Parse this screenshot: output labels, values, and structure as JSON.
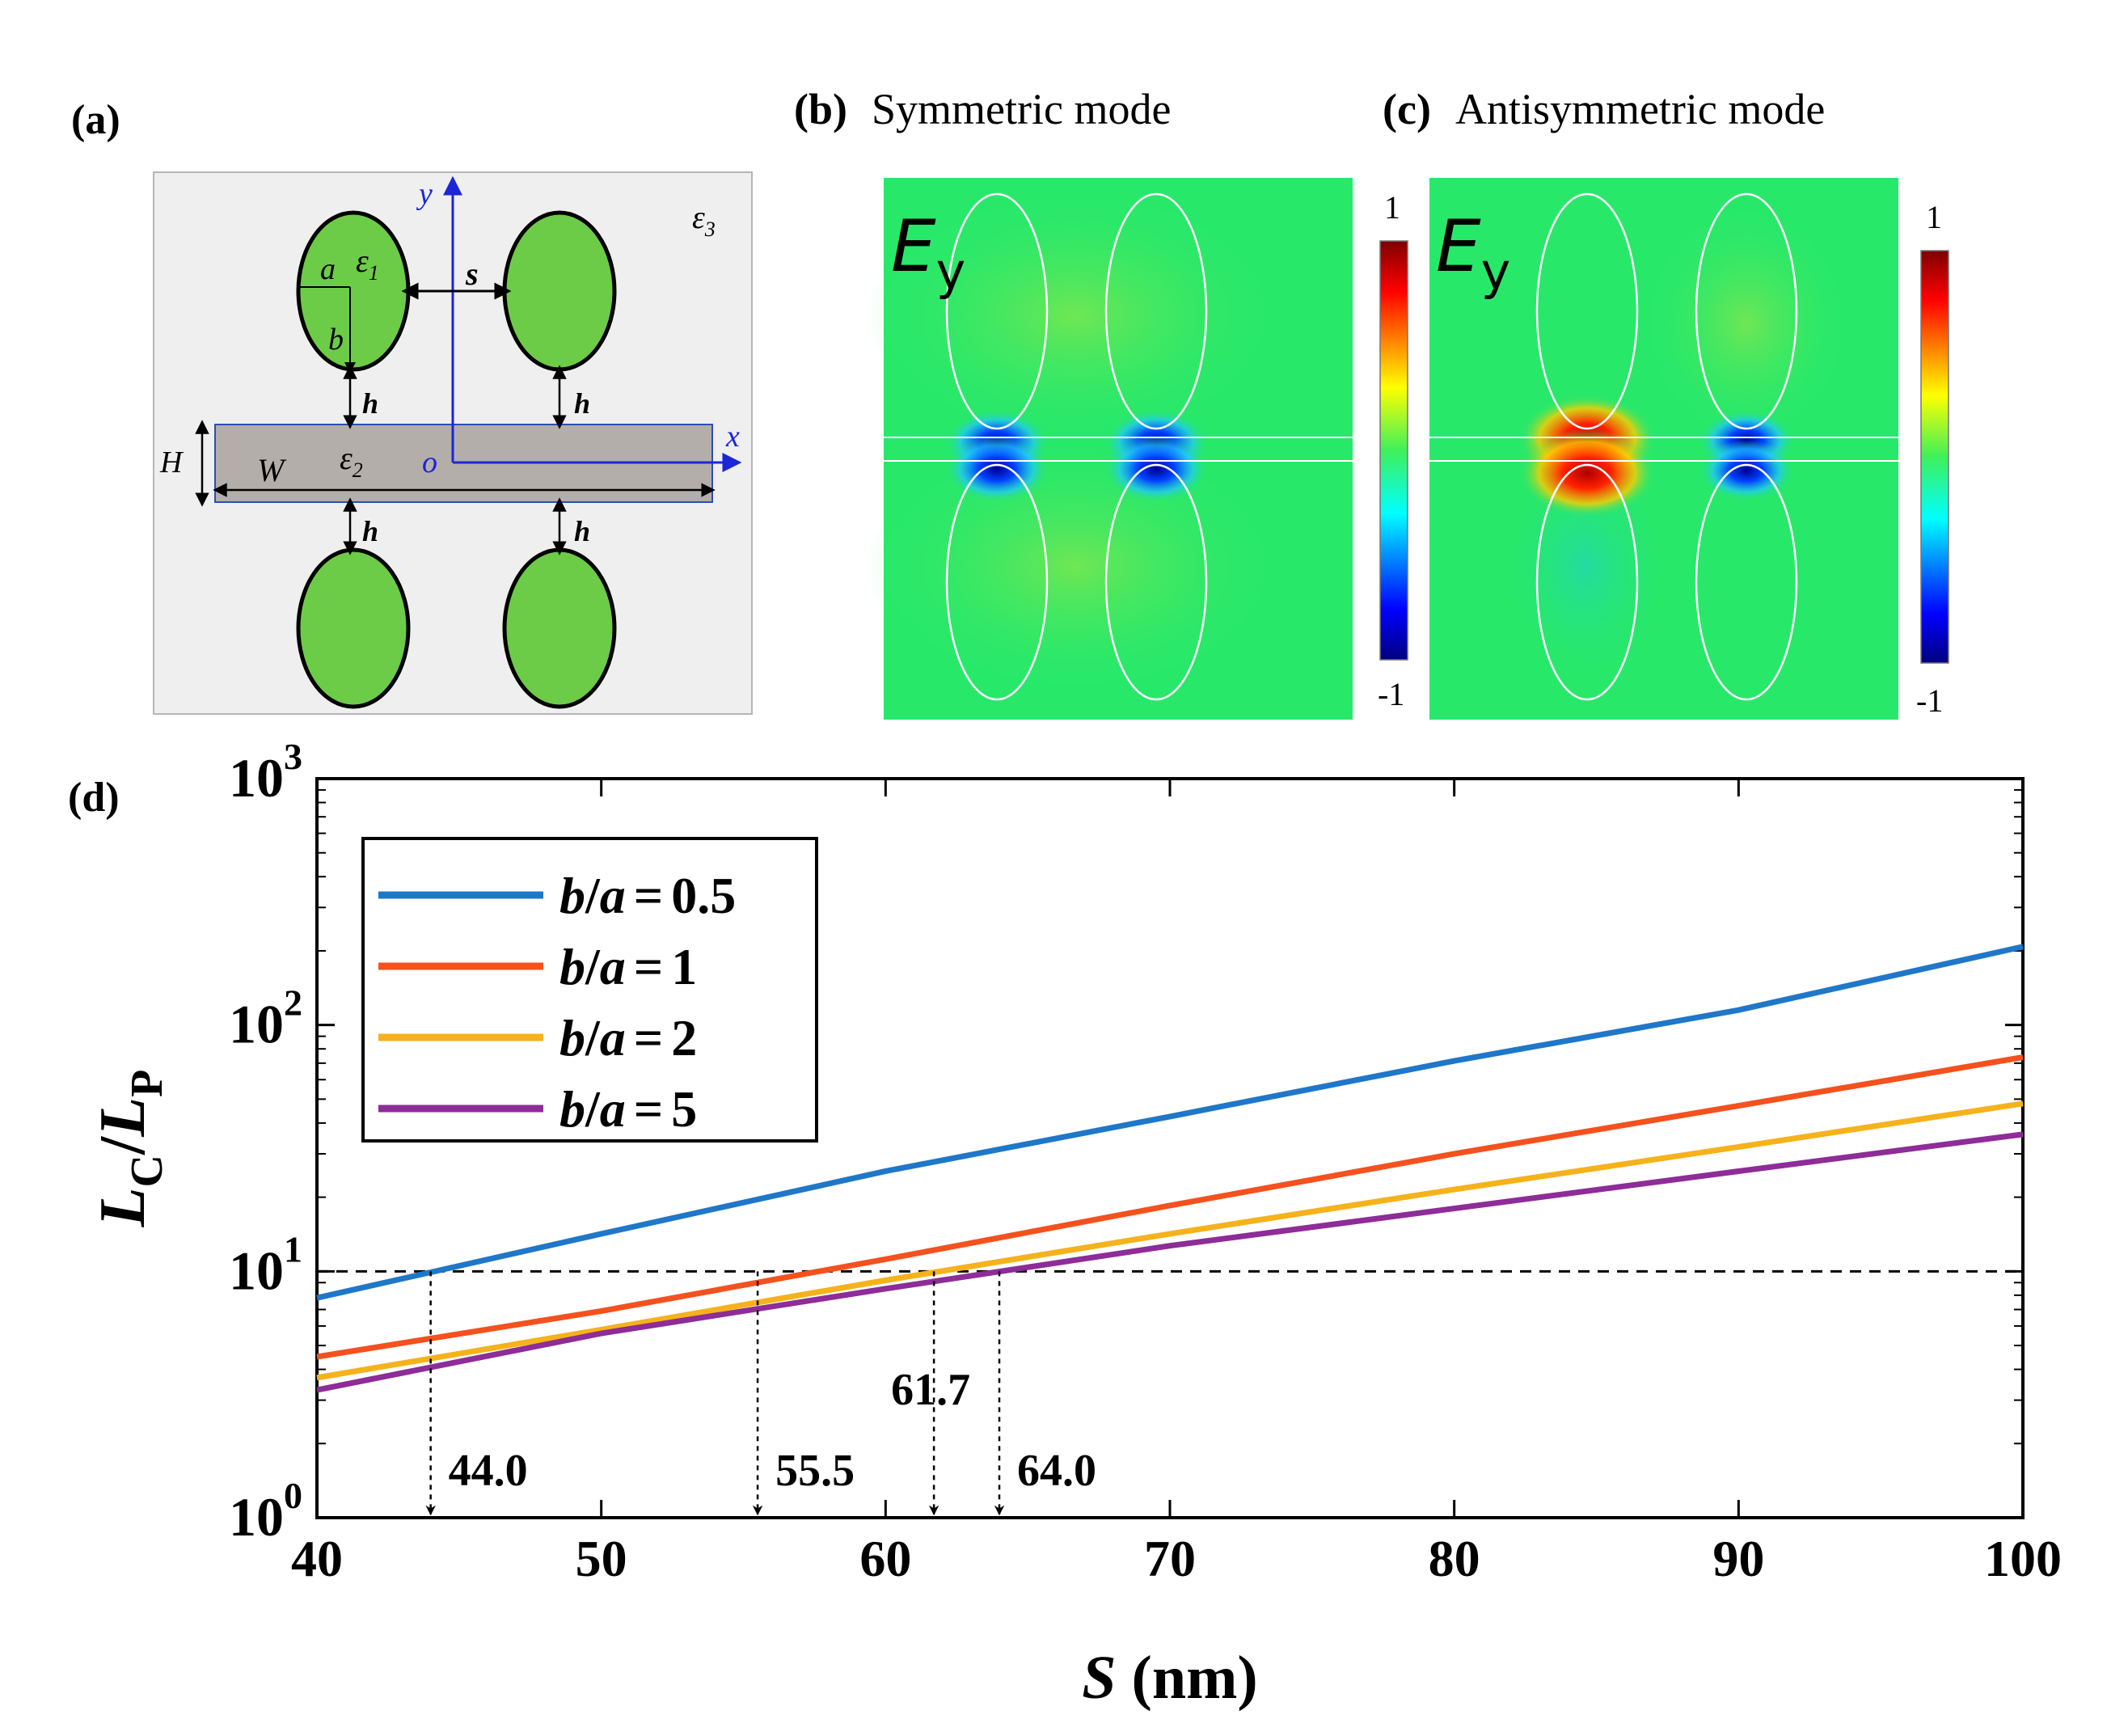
{
  "panels": {
    "a": {
      "label": "(a)",
      "eps1": "ε",
      "eps1_sub": "1",
      "eps2": "ε",
      "eps2_sub": "2",
      "eps3": "ε",
      "eps3_sub": "3",
      "a": "a",
      "b": "b",
      "s": "s",
      "h": "h",
      "H": "H",
      "W": "W",
      "o": "o",
      "x": "x",
      "y": "y"
    },
    "b": {
      "label": "(b)",
      "title": "Symmetric mode",
      "field": "E",
      "field_sub": "y",
      "cb_max": "1",
      "cb_min": "-1"
    },
    "c": {
      "label": "(c)",
      "title": "Antisymmetric mode",
      "field": "E",
      "field_sub": "y",
      "cb_max": "1",
      "cb_min": "-1"
    },
    "d": {
      "label": "(d)"
    }
  },
  "colors": {
    "particle": "#6dcc47",
    "strip": "#b3aeaa",
    "field_bg": "#28e86a",
    "axis_blue": "#1b26d8",
    "s05": "#1f77c9",
    "s1": "#f4511e",
    "s2": "#f6b21b",
    "s5": "#8e2c98"
  },
  "chart_data": {
    "type": "line",
    "xscale": "linear",
    "yscale": "log",
    "xlim": [
      40,
      100
    ],
    "ylim": [
      1,
      1000
    ],
    "xticks": [
      "40",
      "50",
      "60",
      "70",
      "80",
      "90",
      "100"
    ],
    "yticks": [
      {
        "base": "10",
        "exp": "0"
      },
      {
        "base": "10",
        "exp": "1"
      },
      {
        "base": "10",
        "exp": "2"
      },
      {
        "base": "10",
        "exp": "3"
      }
    ],
    "xlabel": {
      "var": "S",
      "unit": " (nm)"
    },
    "ylabel": {
      "main1": "L",
      "sub1": "C",
      "slash": "/",
      "main2": "L",
      "sub2": "P"
    },
    "legend_position": "top-left",
    "series": [
      {
        "name": "b/a = 0.5",
        "key": "s05",
        "legend": {
          "b": "b",
          "slash": "/",
          "a": "a",
          "eq": "=",
          "val": "0.5"
        },
        "x": [
          40,
          50,
          60,
          70,
          80,
          90,
          100
        ],
        "y": [
          7.8,
          14.2,
          25.5,
          42.5,
          71.5,
          115,
          208
        ]
      },
      {
        "name": "b/a = 1",
        "key": "s1",
        "legend": {
          "b": "b",
          "slash": "/",
          "a": "a",
          "eq": "=",
          "val": "1"
        },
        "x": [
          40,
          50,
          60,
          70,
          80,
          90,
          100
        ],
        "y": [
          4.5,
          6.9,
          11.2,
          18.5,
          30,
          47,
          74
        ]
      },
      {
        "name": "b/a = 2",
        "key": "s2",
        "legend": {
          "b": "b",
          "slash": "/",
          "a": "a",
          "eq": "=",
          "val": "2"
        },
        "x": [
          40,
          50,
          60,
          70,
          80,
          90,
          100
        ],
        "y": [
          3.7,
          5.8,
          9.2,
          14.2,
          21.5,
          32,
          48
        ]
      },
      {
        "name": "b/a = 5",
        "key": "s5",
        "legend": {
          "b": "b",
          "slash": "/",
          "a": "a",
          "eq": "=",
          "val": "5"
        },
        "x": [
          40,
          50,
          60,
          70,
          80,
          90,
          100
        ],
        "y": [
          3.3,
          5.6,
          8.5,
          12.7,
          18,
          25.5,
          36
        ]
      }
    ],
    "threshold": 10,
    "annotations": [
      {
        "x": 44.0,
        "text": "44.0",
        "side": "right"
      },
      {
        "x": 55.5,
        "text": "55.5",
        "side": "right"
      },
      {
        "x": 61.7,
        "text": "61.7",
        "side": "above"
      },
      {
        "x": 64.0,
        "text": "64.0",
        "side": "right"
      }
    ]
  }
}
